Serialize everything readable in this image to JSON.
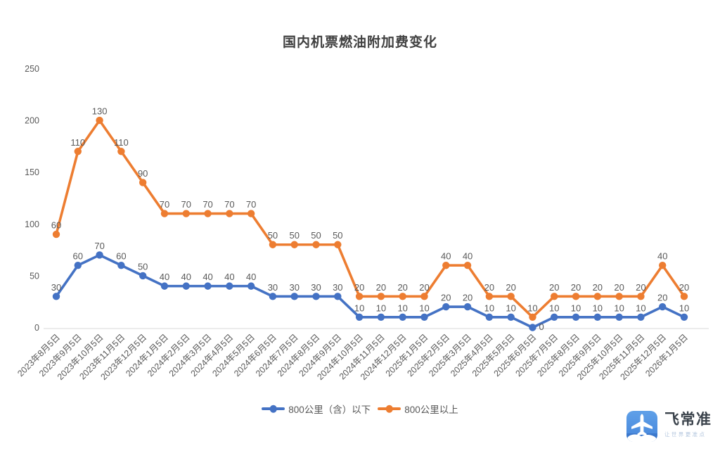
{
  "title": "国内机票燃油附加费变化",
  "chart_data": {
    "type": "line",
    "stacked_display": true,
    "title": "国内机票燃油附加费变化",
    "xlabel": "",
    "ylabel": "",
    "ylim": [
      0,
      250
    ],
    "yticks": [
      0,
      50,
      100,
      150,
      200,
      250
    ],
    "grid": false,
    "legend_position": "bottom",
    "categories": [
      "2023年8月5日",
      "2023年9月5日",
      "2023年10月5日",
      "2023年11月5日",
      "2023年12月5日",
      "2024年1月5日",
      "2024年2月5日",
      "2024年3月5日",
      "2024年4月5日",
      "2024年5月5日",
      "2024年6月5日",
      "2024年7月5日",
      "2024年8月5日",
      "2024年9月5日",
      "2024年10月5日",
      "2024年11月5日",
      "2024年12月5日",
      "2025年1月5日",
      "2025年2月5日",
      "2025年3月5日",
      "2025年4月5日",
      "2025年5月5日",
      "2025年6月5日",
      "2025年7月5日",
      "2025年8月5日",
      "2025年9月5日",
      "2025年10月5日",
      "2025年11月5日",
      "2025年12月5日",
      "2026年1月5日"
    ],
    "series": [
      {
        "name": "800公里（含）以下",
        "color": "#4472C4",
        "values": [
          30,
          60,
          70,
          60,
          50,
          40,
          40,
          40,
          40,
          40,
          30,
          30,
          30,
          30,
          10,
          10,
          10,
          10,
          20,
          20,
          10,
          10,
          0,
          10,
          10,
          10,
          10,
          10,
          20,
          10
        ]
      },
      {
        "name": "800公里以上",
        "color": "#ED7D31",
        "values": [
          60,
          110,
          130,
          110,
          90,
          70,
          70,
          70,
          70,
          70,
          50,
          50,
          50,
          50,
          20,
          20,
          20,
          20,
          40,
          40,
          20,
          20,
          10,
          20,
          20,
          20,
          20,
          20,
          40,
          20
        ]
      }
    ],
    "colors": {
      "axis_label": "#595959",
      "data_label": "#595959",
      "baseline": "#D9D9D9",
      "title": "#404040"
    }
  },
  "logo": {
    "name": "飞常准",
    "tagline": "让世界更准点"
  }
}
